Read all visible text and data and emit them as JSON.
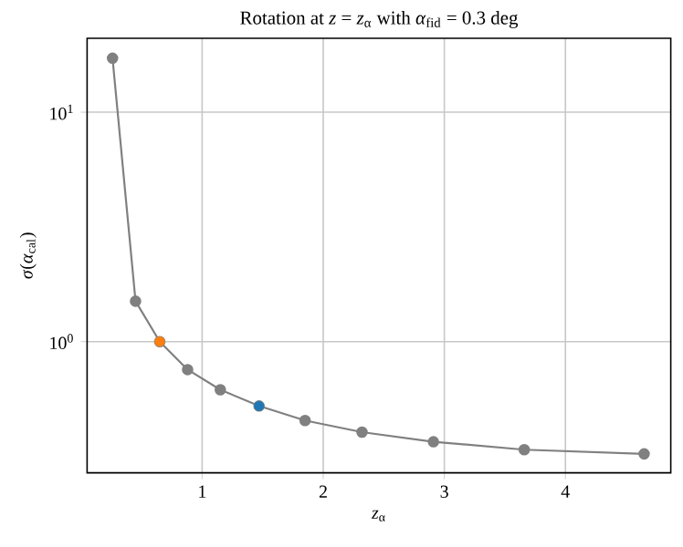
{
  "chart_data": {
    "type": "line",
    "title": "Rotation at *z* = *z*$_{α}$ with *α*$_{fid}$ = 0.3 deg",
    "xlabel": "*z*$_{α}$",
    "ylabel": "*σ*(*α*$_{cal}$)",
    "series": [
      {
        "color": "#808080",
        "marker": "circle",
        "x": [
          0.26,
          0.45,
          0.65,
          0.88,
          1.15,
          1.47,
          1.85,
          2.32,
          2.91,
          3.66,
          4.65
        ],
        "values": [
          17.2,
          1.5,
          1.0,
          0.755,
          0.617,
          0.524,
          0.453,
          0.403,
          0.366,
          0.338,
          0.324
        ]
      },
      {
        "type": "scatter",
        "color": "#ff7f0e",
        "marker": "circle",
        "x": [
          0.65
        ],
        "values": [
          1.0
        ]
      },
      {
        "type": "scatter",
        "color": "#1f77b4",
        "marker": "circle",
        "x": [
          1.47
        ],
        "values": [
          0.524
        ]
      }
    ],
    "log": "y",
    "grid": true,
    "xlim": [
      0.05,
      4.87
    ],
    "ylim": [
      0.268,
      21
    ],
    "xticks": [
      1,
      2,
      3,
      4
    ],
    "yticks": [
      {
        "value": 1,
        "label": "10$^{0}$"
      },
      {
        "value": 10,
        "label": "10$^{1}$"
      }
    ]
  }
}
